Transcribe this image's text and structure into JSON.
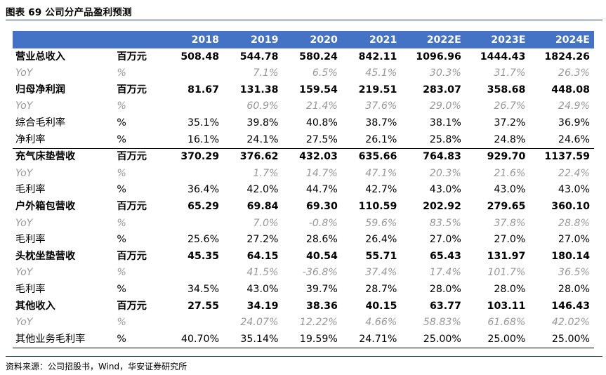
{
  "caption": "图表 69 公司分产品盈利预测",
  "header": [
    "",
    "",
    "2018",
    "2019",
    "2020",
    "2021",
    "2022E",
    "2023E",
    "2024E"
  ],
  "rows": [
    {
      "type": "main",
      "sep": false,
      "label": "营业总收入",
      "unit": "百万元",
      "values": [
        "508.48",
        "544.78",
        "580.24",
        "842.11",
        "1096.96",
        "1444.43",
        "1824.26"
      ]
    },
    {
      "type": "yoy",
      "label": "YoY",
      "unit": "%",
      "values": [
        "",
        "7.1%",
        "6.5%",
        "45.1%",
        "30.3%",
        "31.7%",
        "26.3%"
      ]
    },
    {
      "type": "main",
      "sep": false,
      "label": "归母净利润",
      "unit": "百万元",
      "values": [
        "81.67",
        "131.38",
        "159.54",
        "219.51",
        "283.07",
        "358.68",
        "448.08"
      ]
    },
    {
      "type": "yoy",
      "label": "YoY",
      "unit": "%",
      "values": [
        "",
        "60.9%",
        "21.4%",
        "37.6%",
        "29.0%",
        "26.7%",
        "24.9%"
      ]
    },
    {
      "type": "plain",
      "label": "综合毛利率",
      "unit": "%",
      "values": [
        "35.1%",
        "39.8%",
        "40.8%",
        "38.7%",
        "38.1%",
        "37.2%",
        "36.9%"
      ]
    },
    {
      "type": "plain",
      "label": "净利率",
      "unit": "%",
      "values": [
        "16.1%",
        "24.1%",
        "27.5%",
        "26.1%",
        "25.8%",
        "24.8%",
        "24.6%"
      ]
    },
    {
      "type": "main",
      "sep": true,
      "label": "充气床垫营收",
      "unit": "百万元",
      "values": [
        "370.29",
        "376.62",
        "432.03",
        "635.66",
        "764.83",
        "929.70",
        "1137.59"
      ]
    },
    {
      "type": "yoy",
      "label": "YoY",
      "unit": "%",
      "values": [
        "",
        "1.7%",
        "14.7%",
        "47.1%",
        "20.3%",
        "21.6%",
        "22.4%"
      ]
    },
    {
      "type": "plain",
      "label": "毛利率",
      "unit": "%",
      "values": [
        "36.4%",
        "42.0%",
        "44.7%",
        "42.7%",
        "43.0%",
        "43.0%",
        "43.0%"
      ]
    },
    {
      "type": "main",
      "sep": false,
      "label": "户外箱包营收",
      "unit": "百万元",
      "values": [
        "65.29",
        "69.84",
        "69.30",
        "110.59",
        "202.92",
        "279.65",
        "360.10"
      ]
    },
    {
      "type": "yoy",
      "label": "YoY",
      "unit": "%",
      "values": [
        "",
        "7.0%",
        "-0.8%",
        "59.6%",
        "83.5%",
        "37.8%",
        "28.8%"
      ]
    },
    {
      "type": "plain",
      "label": "毛利率",
      "unit": "%",
      "values": [
        "25.6%",
        "27.2%",
        "28.6%",
        "26.4%",
        "27.0%",
        "27.0%",
        "27.0%"
      ]
    },
    {
      "type": "main",
      "sep": false,
      "label": "头枕坐垫营收",
      "unit": "百万元",
      "values": [
        "45.35",
        "64.15",
        "40.54",
        "55.71",
        "65.43",
        "131.97",
        "180.14"
      ]
    },
    {
      "type": "yoy",
      "label": "YoY",
      "unit": "%",
      "values": [
        "",
        "41.5%",
        "-36.8%",
        "37.4%",
        "17.4%",
        "101.7%",
        "36.5%"
      ]
    },
    {
      "type": "plain",
      "label": "毛利率",
      "unit": "%",
      "values": [
        "34.5%",
        "43.0%",
        "39.7%",
        "28.7%",
        "28.0%",
        "28.0%",
        "28.0%"
      ]
    },
    {
      "type": "main",
      "sep": false,
      "label": "其他收入",
      "unit": "百万元",
      "values": [
        "27.55",
        "34.19",
        "38.36",
        "40.15",
        "63.77",
        "103.11",
        "146.43"
      ]
    },
    {
      "type": "yoy",
      "label": "YoY",
      "unit": "%",
      "values": [
        "",
        "24.07%",
        "12.22%",
        "4.66%",
        "58.83%",
        "61.68%",
        "42.02%"
      ]
    },
    {
      "type": "plain",
      "last": true,
      "label": "其他业务毛利率",
      "unit": "%",
      "values": [
        "40.70%",
        "35.14%",
        "19.59%",
        "24.71%",
        "25.00%",
        "25.00%",
        "25.00%"
      ]
    }
  ],
  "source": "资料来源：公司招股书，Wind，华安证券研究所"
}
